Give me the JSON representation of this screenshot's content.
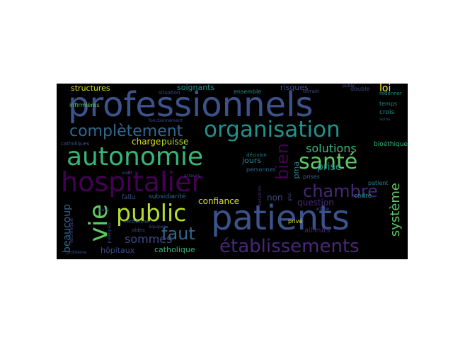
{
  "words": {
    "professionnels": {
      "text": "professionnels",
      "color": "#3b528b"
    },
    "patients": {
      "text": "patients",
      "color": "#3b528b"
    },
    "hospitalier": {
      "text": "hospitalier",
      "color": "#440154"
    },
    "autonomie": {
      "text": "autonomie",
      "color": "#35b779"
    },
    "organisation": {
      "text": "organisation",
      "color": "#21918c"
    },
    "completement": {
      "text": "complètement",
      "color": "#31688e"
    },
    "sante": {
      "text": "santé",
      "color": "#5ec962"
    },
    "public": {
      "text": "public",
      "color": "#b5de2b"
    },
    "vie": {
      "text": "vie",
      "color": "#5ec962"
    },
    "etablissements": {
      "text": "établissements",
      "color": "#482878"
    },
    "chambre": {
      "text": "chambre",
      "color": "#482878"
    },
    "bien": {
      "text": "bien",
      "color": "#440154"
    },
    "solutions": {
      "text": "solutions",
      "color": "#35b779"
    },
    "systeme": {
      "text": "système",
      "color": "#5ec962"
    },
    "faut": {
      "text": "faut",
      "color": "#31688e"
    },
    "sommes": {
      "text": "sommes",
      "color": "#3e4989"
    },
    "beaucoup": {
      "text": "beaucoup",
      "color": "#31688e"
    },
    "structures": {
      "text": "structures",
      "color": "#d8e219"
    },
    "soignants": {
      "text": "soignants",
      "color": "#21918c"
    },
    "risques": {
      "text": "risques",
      "color": "#3e4989"
    },
    "loi": {
      "text": "loi",
      "color": "#fde725"
    },
    "charge": {
      "text": "charge",
      "color": "#d8e219"
    },
    "puisse": {
      "text": "puisse",
      "color": "#b5de2b"
    },
    "jours": {
      "text": "jours",
      "color": "#26828e"
    },
    "prise": {
      "text": "prise",
      "color": "#21918c"
    },
    "pma": {
      "text": "pma",
      "color": "#26828e"
    },
    "confiance": {
      "text": "confiance",
      "color": "#d8e219"
    },
    "non": {
      "text": "non",
      "color": "#3e4989"
    },
    "question": {
      "text": "question",
      "color": "#482878"
    },
    "hopitaux": {
      "text": "hôpitaux",
      "color": "#3e4989"
    },
    "catholique": {
      "text": "catholique",
      "color": "#35b779"
    },
    "subsidiarite": {
      "text": "subsidiarité",
      "color": "#31688e"
    },
    "fallu": {
      "text": "fallu",
      "color": "#3b528b"
    },
    "recherche": {
      "text": "recherche",
      "color": "#31688e"
    },
    "aides": {
      "text": "aides",
      "color": "#3e4989"
    },
    "prive": {
      "text": "privé",
      "color": "#d8e219"
    },
    "ailleurs": {
      "text": "ailleurs",
      "color": "#482878"
    },
    "cadre": {
      "text": "cadre",
      "color": "#21918c"
    },
    "patient": {
      "text": "patient",
      "color": "#26828e"
    },
    "bioethique": {
      "text": "bioéthique",
      "color": "#35b779"
    },
    "crois": {
      "text": "crois",
      "color": "#21918c"
    },
    "temps": {
      "text": "temps",
      "color": "#26828e"
    },
    "double": {
      "text": "double",
      "color": "#3e4989"
    },
    "redonner": {
      "text": "redonner",
      "color": "#21918c"
    },
    "infirmieres": {
      "text": "infirmières",
      "color": "#5ec962"
    },
    "catholiques": {
      "text": "catholiques",
      "color": "#3b528b"
    },
    "personnes": {
      "text": "personnes",
      "color": "#31688e"
    },
    "decision": {
      "text": "décision",
      "color": "#26828e"
    },
    "ensemble": {
      "text": "ensemble",
      "color": "#21918c"
    },
    "services": {
      "text": "services",
      "color": "#482878"
    },
    "situation": {
      "text": "situation",
      "color": "#3e4989"
    },
    "technique": {
      "text": "technique",
      "color": "#3e4989"
    },
    "probleme": {
      "text": "problème",
      "color": "#3e4989"
    },
    "prises": {
      "text": "prises",
      "color": "#31688e"
    },
    "equipes": {
      "text": "équipes",
      "color": "#3e4989"
    },
    "publiques": {
      "text": "publiques",
      "color": "#3e4989"
    },
    "vient": {
      "text": "vient",
      "color": "#3e4989"
    },
    "terrain": {
      "text": "terrain",
      "color": "#3e4989"
    },
    "fonctionnement": {
      "text": "fonctionnement",
      "color": "#3e4989"
    },
    "pays": {
      "text": "pays",
      "color": "#3e4989"
    },
    "ghsi": {
      "text": "ghsi",
      "color": "#3e4989"
    },
    "article": {
      "text": "article",
      "color": "#3e4989"
    },
    "soins": {
      "text": "soins",
      "color": "#3e4989"
    },
    "acteurs": {
      "text": "acteurs",
      "color": "#3e4989"
    },
    "public2": {
      "text": "public",
      "color": "#3e4989"
    }
  }
}
